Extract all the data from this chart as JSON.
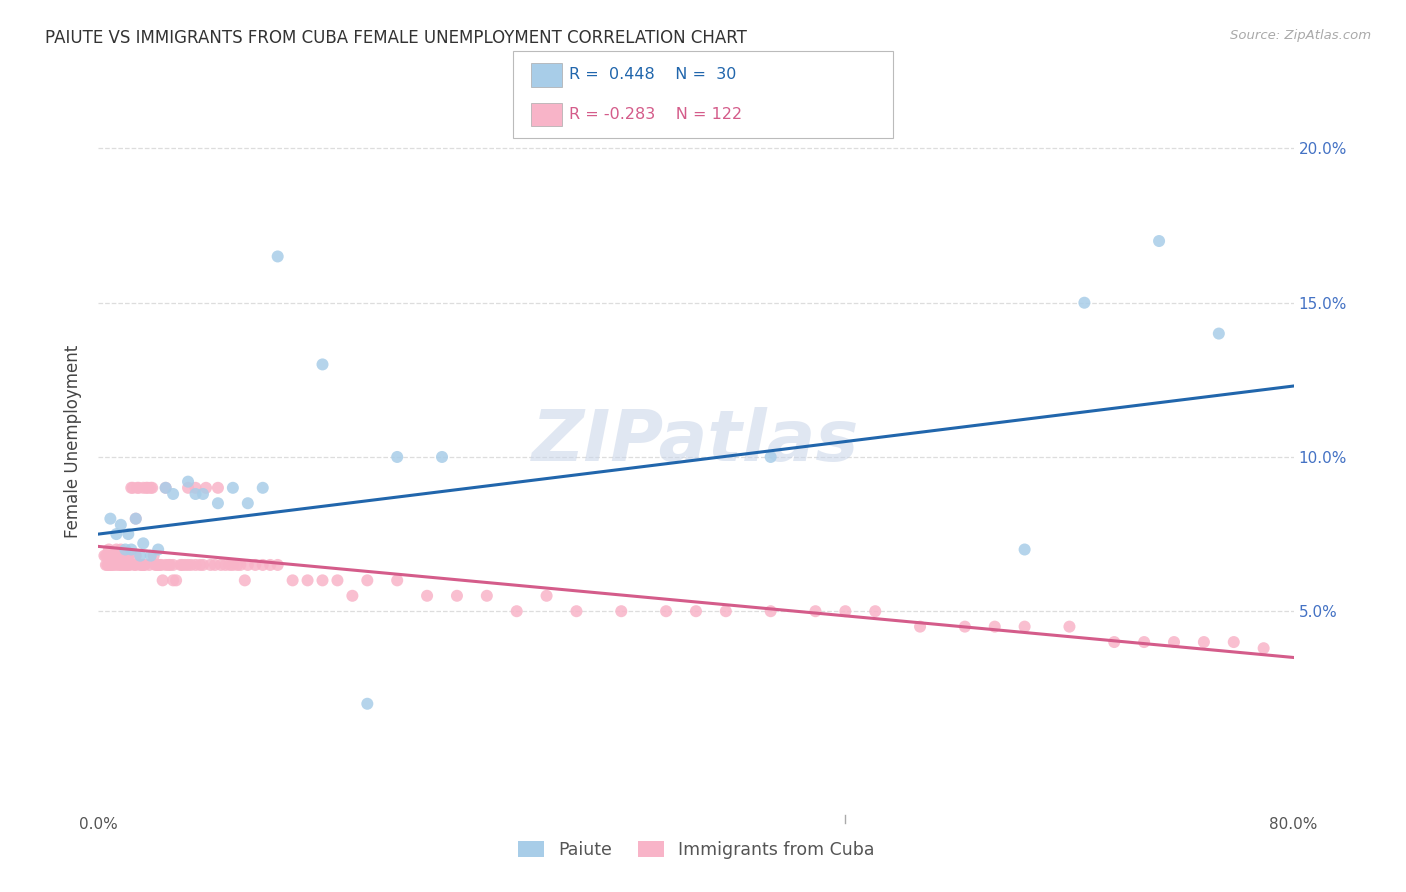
{
  "title": "PAIUTE VS IMMIGRANTS FROM CUBA FEMALE UNEMPLOYMENT CORRELATION CHART",
  "source": "Source: ZipAtlas.com",
  "ylabel": "Female Unemployment",
  "ytick_vals": [
    0.05,
    0.1,
    0.15,
    0.2
  ],
  "ytick_labels": [
    "5.0%",
    "10.0%",
    "15.0%",
    "20.0%"
  ],
  "xlim": [
    0.0,
    0.8
  ],
  "ylim": [
    -0.015,
    0.225
  ],
  "legend_label1": "Paiute",
  "legend_label2": "Immigrants from Cuba",
  "blue_scatter": "#a8cde8",
  "pink_scatter": "#f8b4c8",
  "blue_line": "#2166ac",
  "pink_line": "#d45c8a",
  "bg": "#ffffff",
  "grid_color": "#dddddd",
  "watermark": "ZIPatlas",
  "title_fs": 12,
  "tick_fs": 11,
  "ylabel_fs": 12,
  "paiute_x": [
    0.008,
    0.012,
    0.015,
    0.018,
    0.02,
    0.022,
    0.025,
    0.028,
    0.03,
    0.035,
    0.04,
    0.045,
    0.05,
    0.06,
    0.065,
    0.07,
    0.08,
    0.09,
    0.1,
    0.11,
    0.12,
    0.15,
    0.18,
    0.2,
    0.23,
    0.45,
    0.62,
    0.66,
    0.71,
    0.75
  ],
  "paiute_y": [
    0.08,
    0.075,
    0.078,
    0.07,
    0.075,
    0.07,
    0.08,
    0.068,
    0.072,
    0.068,
    0.07,
    0.09,
    0.088,
    0.092,
    0.088,
    0.088,
    0.085,
    0.09,
    0.085,
    0.09,
    0.165,
    0.13,
    0.02,
    0.1,
    0.1,
    0.1,
    0.07,
    0.15,
    0.17,
    0.14
  ],
  "cuba_x": [
    0.004,
    0.005,
    0.006,
    0.006,
    0.007,
    0.007,
    0.008,
    0.008,
    0.009,
    0.01,
    0.01,
    0.011,
    0.012,
    0.012,
    0.013,
    0.014,
    0.015,
    0.015,
    0.016,
    0.017,
    0.018,
    0.018,
    0.019,
    0.02,
    0.02,
    0.021,
    0.022,
    0.023,
    0.024,
    0.025,
    0.025,
    0.026,
    0.027,
    0.028,
    0.029,
    0.03,
    0.03,
    0.031,
    0.032,
    0.033,
    0.034,
    0.035,
    0.036,
    0.037,
    0.038,
    0.039,
    0.04,
    0.04,
    0.041,
    0.042,
    0.043,
    0.045,
    0.045,
    0.047,
    0.048,
    0.05,
    0.05,
    0.052,
    0.055,
    0.056,
    0.058,
    0.06,
    0.06,
    0.062,
    0.065,
    0.065,
    0.068,
    0.07,
    0.072,
    0.075,
    0.078,
    0.08,
    0.082,
    0.085,
    0.088,
    0.09,
    0.093,
    0.095,
    0.098,
    0.1,
    0.105,
    0.11,
    0.115,
    0.12,
    0.13,
    0.14,
    0.15,
    0.16,
    0.17,
    0.18,
    0.2,
    0.22,
    0.24,
    0.26,
    0.28,
    0.3,
    0.32,
    0.35,
    0.38,
    0.4,
    0.42,
    0.45,
    0.48,
    0.5,
    0.52,
    0.55,
    0.58,
    0.6,
    0.62,
    0.65,
    0.68,
    0.7,
    0.72,
    0.74,
    0.76,
    0.78,
    0.005,
    0.01,
    0.015,
    0.02,
    0.025,
    0.03
  ],
  "cuba_y": [
    0.068,
    0.065,
    0.065,
    0.068,
    0.07,
    0.065,
    0.068,
    0.065,
    0.065,
    0.068,
    0.065,
    0.068,
    0.07,
    0.065,
    0.068,
    0.065,
    0.07,
    0.065,
    0.065,
    0.068,
    0.065,
    0.065,
    0.065,
    0.065,
    0.068,
    0.065,
    0.09,
    0.09,
    0.065,
    0.08,
    0.065,
    0.09,
    0.09,
    0.065,
    0.065,
    0.09,
    0.065,
    0.065,
    0.09,
    0.09,
    0.065,
    0.09,
    0.09,
    0.068,
    0.065,
    0.065,
    0.065,
    0.065,
    0.065,
    0.065,
    0.06,
    0.065,
    0.09,
    0.065,
    0.065,
    0.06,
    0.065,
    0.06,
    0.065,
    0.065,
    0.065,
    0.065,
    0.09,
    0.065,
    0.065,
    0.09,
    0.065,
    0.065,
    0.09,
    0.065,
    0.065,
    0.09,
    0.065,
    0.065,
    0.065,
    0.065,
    0.065,
    0.065,
    0.06,
    0.065,
    0.065,
    0.065,
    0.065,
    0.065,
    0.06,
    0.06,
    0.06,
    0.06,
    0.055,
    0.06,
    0.06,
    0.055,
    0.055,
    0.055,
    0.05,
    0.055,
    0.05,
    0.05,
    0.05,
    0.05,
    0.05,
    0.05,
    0.05,
    0.05,
    0.05,
    0.045,
    0.045,
    0.045,
    0.045,
    0.045,
    0.04,
    0.04,
    0.04,
    0.04,
    0.04,
    0.038,
    0.068,
    0.068,
    0.068,
    0.068,
    0.068,
    0.065
  ],
  "blue_line_x0": 0.0,
  "blue_line_y0": 0.075,
  "blue_line_x1": 0.8,
  "blue_line_y1": 0.123,
  "pink_line_x0": 0.0,
  "pink_line_y0": 0.071,
  "pink_line_x1": 0.8,
  "pink_line_y1": 0.035
}
